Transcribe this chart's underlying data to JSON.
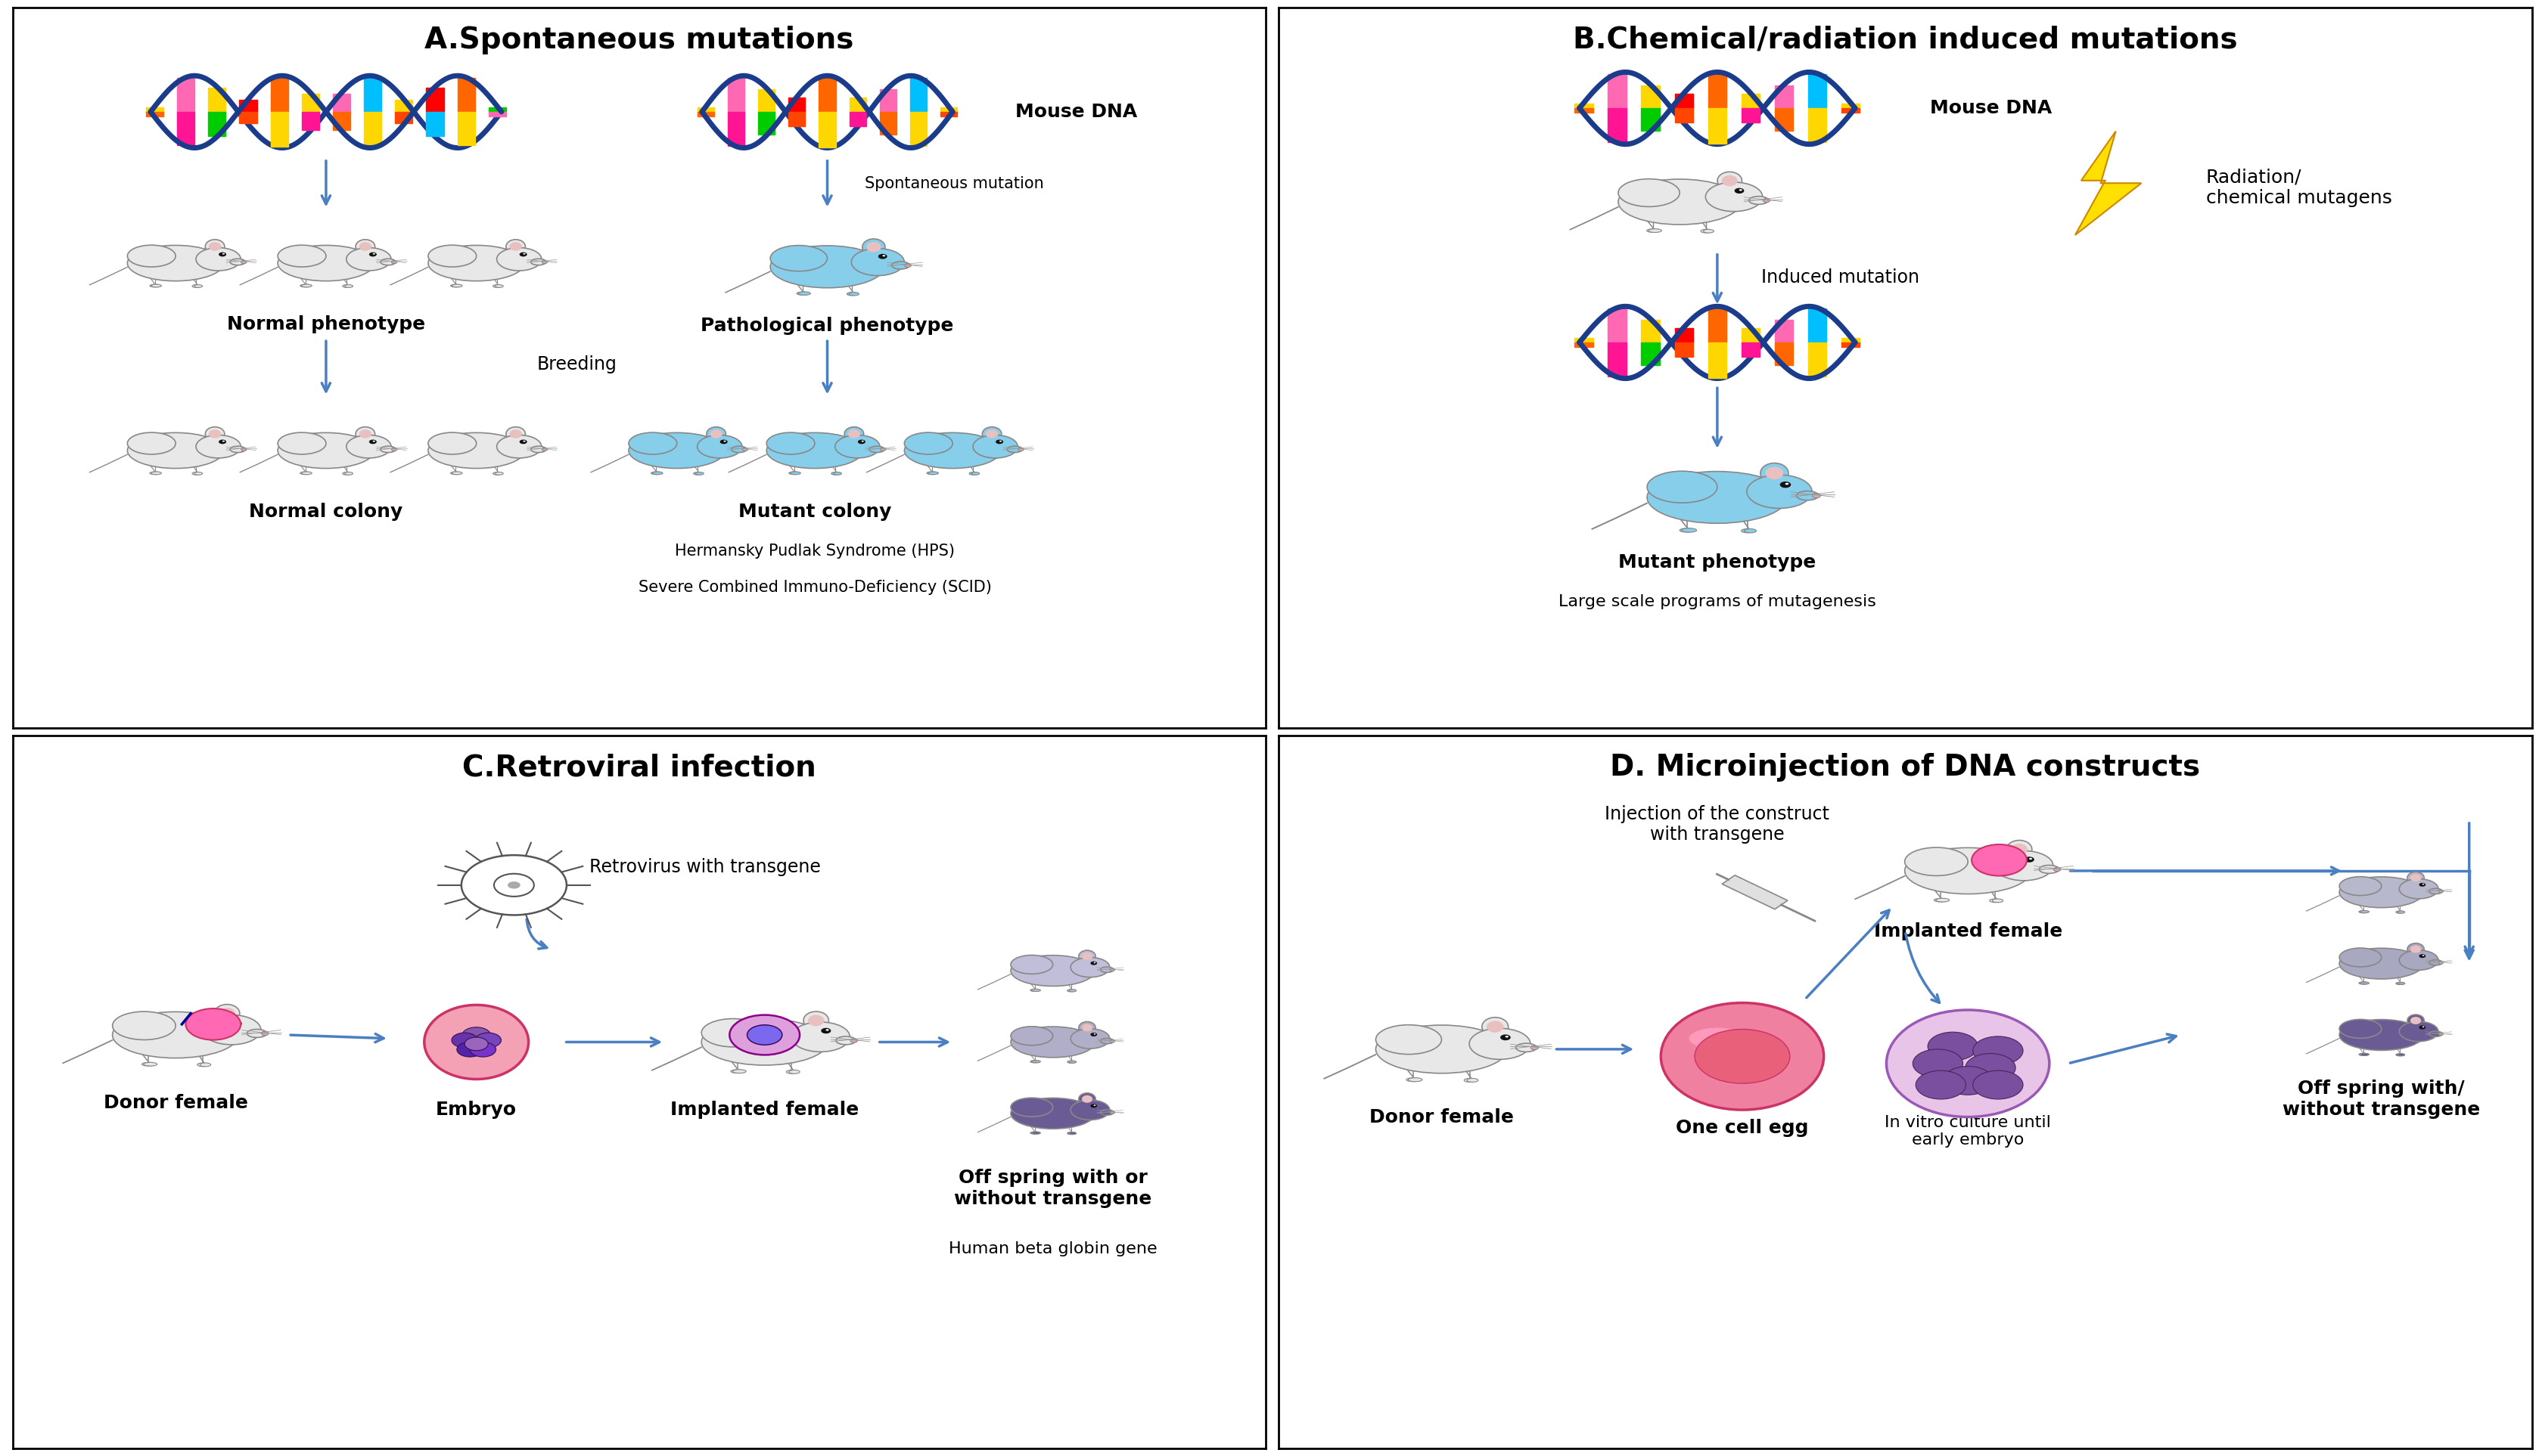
{
  "title_A": "A.Spontaneous mutations",
  "title_B": "B.Chemical/radiation induced mutations",
  "title_C": "C.Retroviral infection",
  "title_D": "D. Microinjection of DNA constructs",
  "panel_A_texts": {
    "mouse_dna": "Mouse DNA",
    "spontaneous_mutation": "Spontaneous mutation",
    "normal_phenotype": "Normal phenotype",
    "pathological_phenotype": "Pathological phenotype",
    "breeding": "Breeding",
    "normal_colony": "Normal colony",
    "mutant_colony": "Mutant colony",
    "hps": "Hermansky Pudlak Syndrome (HPS)",
    "scid": "Severe Combined Immuno-Deficiency (SCID)"
  },
  "panel_B_texts": {
    "mouse_dna": "Mouse DNA",
    "radiation": "Radiation/\nchemical mutagens",
    "induced_mutation": "Induced mutation",
    "mutant_phenotype": "Mutant phenotype",
    "large_scale": "Large scale programs of mutagenesis"
  },
  "panel_C_texts": {
    "retrovirus": "Retrovirus with transgene",
    "donor_female": "Donor female",
    "embryo": "Embryo",
    "implanted_female": "Implanted female",
    "offspring": "Off spring with or\nwithout transgene",
    "human_beta": "Human beta globin gene"
  },
  "panel_D_texts": {
    "injection": "Injection of the construct\nwith transgene",
    "implanted_female": "Implanted female",
    "donor_female": "Donor female",
    "one_cell_egg": "One cell egg",
    "in_vitro": "In vitro culture until\nearly embryo",
    "offspring": "Off spring with/\nwithout transgene"
  },
  "arrow_color": "#4A7FC1",
  "bg_color": "#FFFFFF",
  "title_fontsize": 28,
  "label_fontsize": 18,
  "small_fontsize": 15,
  "dna_blue": "#1B3B8B",
  "mouse_white": "#EBEBEB",
  "mouse_blue": "#87CEEB",
  "mouse_dark": "#8888AA"
}
